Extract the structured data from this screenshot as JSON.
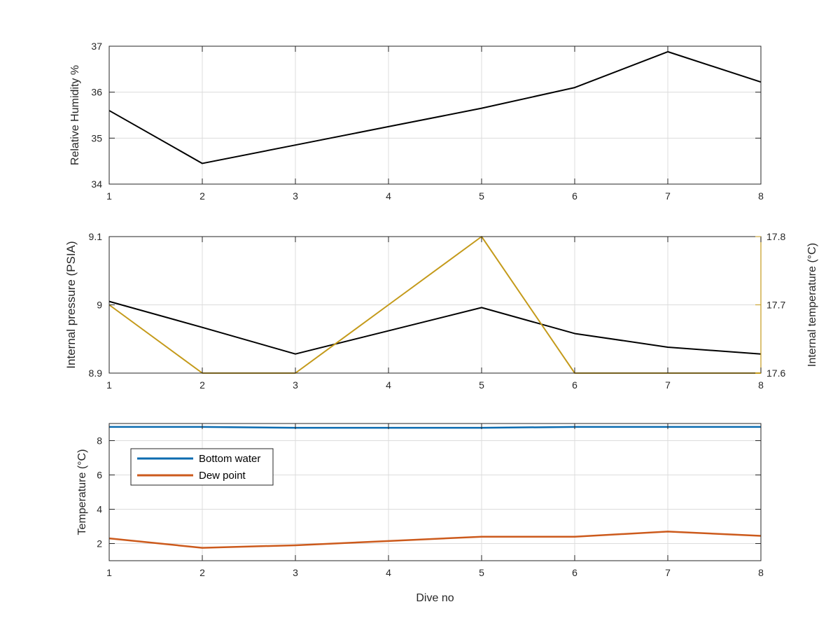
{
  "colors": {
    "humidity": "#000000",
    "pressure": "#000000",
    "internal_temperature": "#c49a1a",
    "bottom_water": "#0b6bb0",
    "dew_point": "#cc5a1c",
    "axis": "#262626",
    "grid": "#dcdcdc"
  },
  "chart_data": [
    {
      "type": "line",
      "title": "",
      "xlabel": "",
      "ylabel": "Relative Humidity %",
      "x": [
        1,
        2,
        3,
        4,
        5,
        6,
        7,
        8
      ],
      "xlim": [
        1,
        8
      ],
      "ylim": [
        34,
        37
      ],
      "xticks": [
        "1",
        "2",
        "3",
        "4",
        "5",
        "6",
        "7",
        "8"
      ],
      "yticks": [
        "34",
        "35",
        "36",
        "37"
      ],
      "grid": true,
      "series": [
        {
          "values": [
            35.6,
            34.45,
            34.85,
            35.25,
            35.65,
            36.1,
            36.88,
            36.22
          ]
        }
      ]
    },
    {
      "type": "line",
      "title": "",
      "xlabel": "",
      "ylabel": "Internal pressure (PSIA)",
      "ylabel_right": "Internal temperature (°C)",
      "x": [
        1,
        2,
        3,
        4,
        5,
        6,
        7,
        8
      ],
      "xlim": [
        1,
        8
      ],
      "ylim": [
        8.9,
        9.1
      ],
      "ylim_right": [
        17.6,
        17.8
      ],
      "xticks": [
        "1",
        "2",
        "3",
        "4",
        "5",
        "6",
        "7",
        "8"
      ],
      "yticks": [
        "8.9",
        "9",
        "9.1"
      ],
      "yticks_right": [
        "17.6",
        "17.7",
        "17.8"
      ],
      "grid": true,
      "series": [
        {
          "axis": "left",
          "values": [
            9.005,
            8.967,
            8.928,
            8.962,
            8.996,
            8.958,
            8.938,
            8.928
          ]
        },
        {
          "axis": "right",
          "values": [
            17.7,
            17.6,
            17.6,
            17.7,
            17.8,
            17.6,
            17.6,
            17.6
          ]
        }
      ]
    },
    {
      "type": "line",
      "title": "",
      "xlabel": "Dive no",
      "ylabel": "Temperature (°C)",
      "x": [
        1,
        2,
        3,
        4,
        5,
        6,
        7,
        8
      ],
      "xlim": [
        1,
        8
      ],
      "ylim": [
        1,
        9
      ],
      "xticks": [
        "1",
        "2",
        "3",
        "4",
        "5",
        "6",
        "7",
        "8"
      ],
      "yticks": [
        "2",
        "4",
        "6",
        "8"
      ],
      "grid": true,
      "legend_position": "top-left",
      "series": [
        {
          "name": "Bottom water",
          "values": [
            8.8,
            8.8,
            8.75,
            8.75,
            8.75,
            8.8,
            8.8,
            8.8
          ]
        },
        {
          "name": "Dew point",
          "values": [
            2.3,
            1.75,
            1.9,
            2.15,
            2.4,
            2.4,
            2.7,
            2.45
          ]
        }
      ]
    }
  ]
}
